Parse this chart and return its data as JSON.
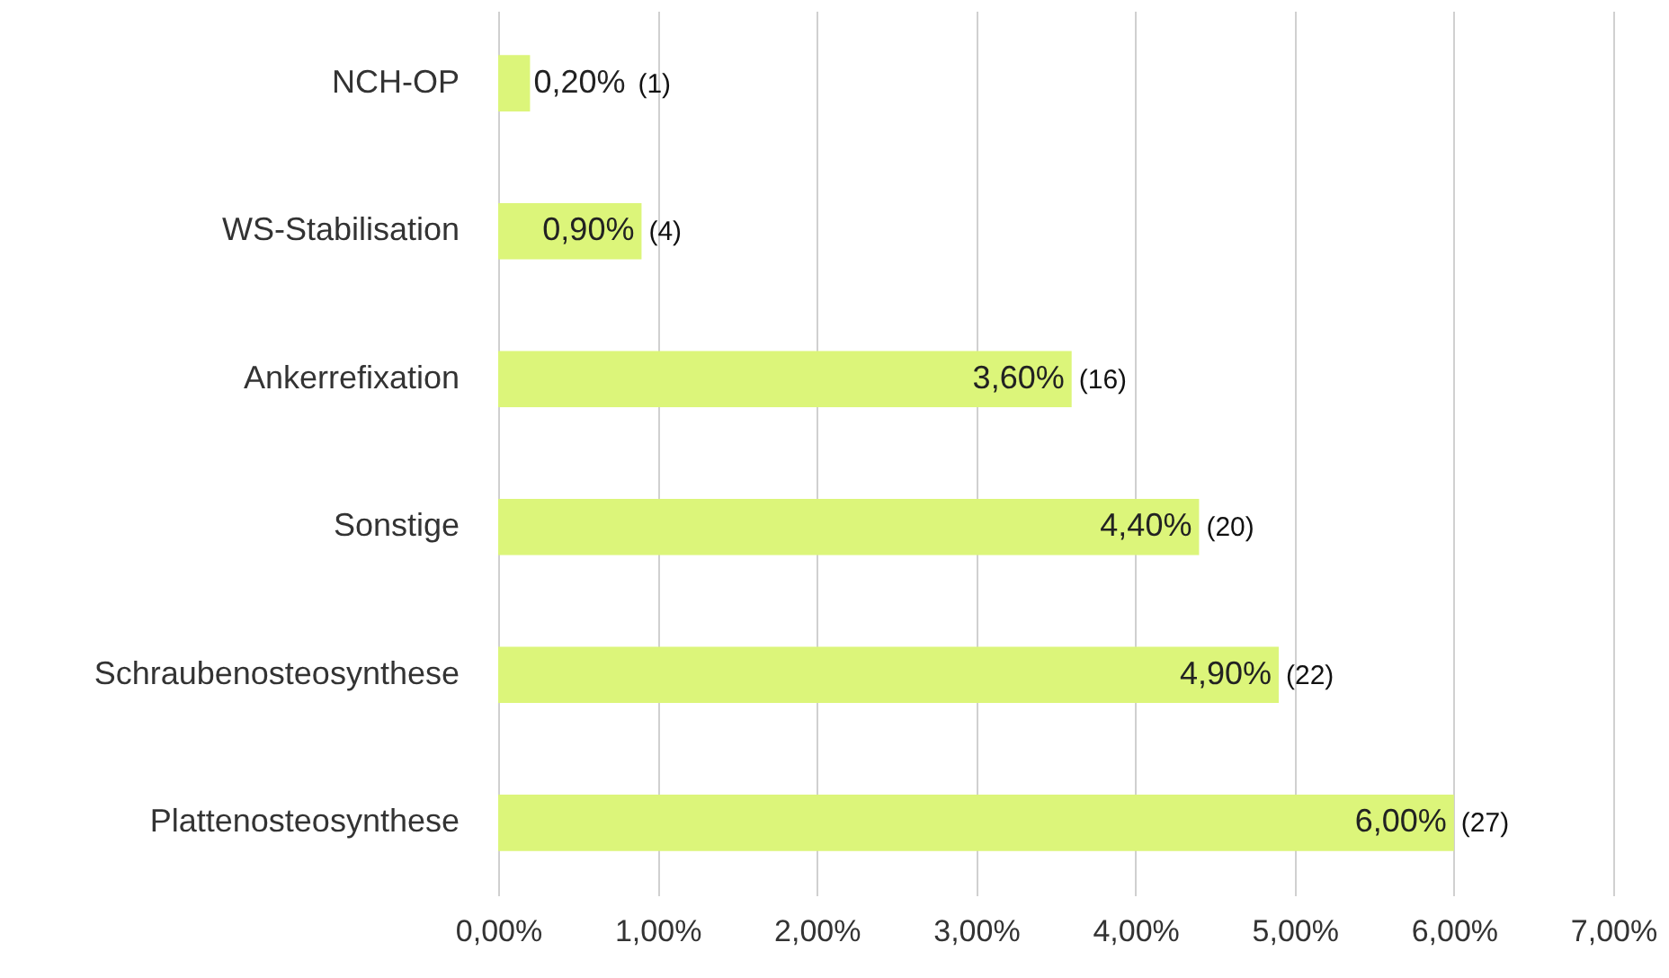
{
  "chart_data": {
    "type": "bar",
    "orientation": "horizontal",
    "categories": [
      "NCH-OP",
      "WS-Stabilisation",
      "Ankerrefixation",
      "Sonstige",
      "Schraubenosteosynthese",
      "Plattenosteosynthese"
    ],
    "values": [
      0.2,
      0.9,
      3.6,
      4.4,
      4.9,
      6.0
    ],
    "color": "#dcf57a",
    "value_labels": [
      "0,20%",
      "0,90%",
      "3,60%",
      "4,40%",
      "4,90%",
      "6,00%"
    ],
    "xlim": [
      0,
      7
    ],
    "xticks": [
      {
        "value": 0,
        "label": "0,00%"
      },
      {
        "value": 1,
        "label": "1,00%"
      },
      {
        "value": 2,
        "label": "2,00%"
      },
      {
        "value": 3,
        "label": "3,00%"
      },
      {
        "value": 4,
        "label": "4,00%"
      },
      {
        "value": 5,
        "label": "5,00%"
      },
      {
        "value": 6,
        "label": "6,00%"
      },
      {
        "value": 7,
        "label": "7,00%"
      }
    ],
    "grid": "x",
    "annotations": [
      "(1)",
      "(4)",
      "(16)",
      "(20)",
      "(22)",
      "(27)"
    ]
  }
}
